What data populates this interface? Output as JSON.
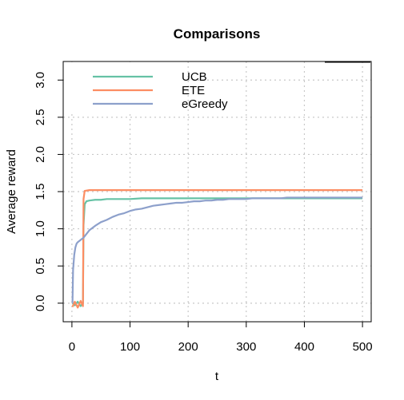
{
  "chart_data": {
    "type": "line",
    "title": "Comparisons",
    "xlabel": "t",
    "ylabel": "Average reward",
    "xlim": [
      -15,
      515
    ],
    "ylim": [
      -0.25,
      3.25
    ],
    "x_ticks": [
      0,
      100,
      200,
      300,
      400,
      500
    ],
    "y_ticks": [
      0.0,
      0.5,
      1.0,
      1.5,
      2.0,
      2.5,
      3.0
    ],
    "x_tick_labels": [
      "0",
      "100",
      "200",
      "300",
      "400",
      "500"
    ],
    "y_tick_labels": [
      "0.0",
      "0.5",
      "1.0",
      "1.5",
      "2.0",
      "2.5",
      "3.0"
    ],
    "grid": true,
    "legend_position": "top-left",
    "series": [
      {
        "name": "UCB",
        "color": "#66c2a5",
        "x": [
          1,
          5,
          10,
          15,
          19,
          20,
          22,
          25,
          30,
          40,
          50,
          60,
          80,
          100,
          120,
          150,
          200,
          250,
          300,
          350,
          400,
          450,
          500
        ],
        "values": [
          0.0,
          -0.03,
          0.02,
          -0.04,
          0.0,
          1.05,
          1.33,
          1.37,
          1.38,
          1.39,
          1.39,
          1.4,
          1.4,
          1.4,
          1.41,
          1.41,
          1.41,
          1.41,
          1.41,
          1.41,
          1.41,
          1.41,
          1.41
        ]
      },
      {
        "name": "ETE",
        "color": "#fc8d62",
        "x": [
          1,
          5,
          10,
          15,
          19,
          20,
          22,
          30,
          50,
          100,
          150,
          200,
          250,
          300,
          350,
          400,
          450,
          500
        ],
        "values": [
          -0.05,
          0.02,
          -0.06,
          0.03,
          -0.04,
          1.4,
          1.51,
          1.52,
          1.52,
          1.52,
          1.52,
          1.52,
          1.52,
          1.52,
          1.52,
          1.52,
          1.52,
          1.52
        ]
      },
      {
        "name": "eGreedy",
        "color": "#8da0cb",
        "x": [
          1,
          2,
          4,
          6,
          8,
          10,
          15,
          20,
          25,
          30,
          40,
          50,
          60,
          70,
          80,
          90,
          100,
          110,
          120,
          130,
          140,
          150,
          160,
          170,
          180,
          190,
          200,
          210,
          220,
          230,
          240,
          250,
          260,
          270,
          280,
          290,
          300,
          310,
          320,
          330,
          340,
          350,
          360,
          370,
          380,
          390,
          400,
          410,
          420,
          430,
          440,
          450,
          460,
          470,
          480,
          490,
          500
        ],
        "values": [
          0.0,
          0.45,
          0.65,
          0.75,
          0.8,
          0.82,
          0.85,
          0.88,
          0.93,
          0.98,
          1.04,
          1.09,
          1.12,
          1.16,
          1.19,
          1.21,
          1.24,
          1.26,
          1.27,
          1.29,
          1.31,
          1.32,
          1.33,
          1.34,
          1.35,
          1.35,
          1.36,
          1.37,
          1.37,
          1.38,
          1.38,
          1.39,
          1.39,
          1.4,
          1.4,
          1.4,
          1.4,
          1.41,
          1.41,
          1.41,
          1.41,
          1.41,
          1.41,
          1.42,
          1.42,
          1.42,
          1.42,
          1.42,
          1.42,
          1.42,
          1.42,
          1.42,
          1.42,
          1.42,
          1.42,
          1.42,
          1.42
        ]
      }
    ]
  }
}
